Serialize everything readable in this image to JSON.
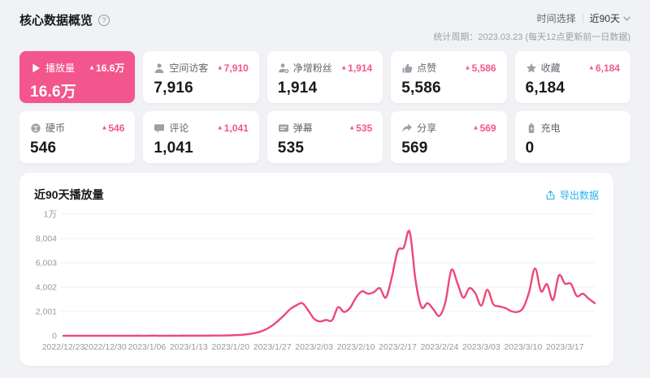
{
  "page": {
    "background": "#f1f2f5",
    "accent_pink": "#f2568c",
    "accent_blue": "#2ab1ec"
  },
  "header": {
    "title": "核心数据概览",
    "help_icon": "question-circle-icon",
    "time_label": "时间选择",
    "time_value": "近90天",
    "period": "统计周期：2023.03.23 (每天12点更新前一日数据)"
  },
  "stats": {
    "cards": [
      {
        "icon": "play-icon",
        "label": "播放量",
        "delta": "16.6万",
        "value": "16.6万",
        "active": true
      },
      {
        "icon": "visitor-icon",
        "label": "空间访客",
        "delta": "7,910",
        "value": "7,916",
        "active": false
      },
      {
        "icon": "new-follower-icon",
        "label": "净增粉丝",
        "delta": "1,914",
        "value": "1,914",
        "active": false
      },
      {
        "icon": "like-icon",
        "label": "点赞",
        "delta": "5,586",
        "value": "5,586",
        "active": false
      },
      {
        "icon": "favorite-icon",
        "label": "收藏",
        "delta": "6,184",
        "value": "6,184",
        "active": false
      },
      {
        "icon": "coin-icon",
        "label": "硬币",
        "delta": "546",
        "value": "546",
        "active": false
      },
      {
        "icon": "comment-icon",
        "label": "评论",
        "delta": "1,041",
        "value": "1,041",
        "active": false
      },
      {
        "icon": "danmaku-icon",
        "label": "弹幕",
        "delta": "535",
        "value": "535",
        "active": false
      },
      {
        "icon": "share-icon",
        "label": "分享",
        "delta": "569",
        "value": "569",
        "active": false
      },
      {
        "icon": "battery-icon",
        "label": "充电",
        "delta": "",
        "value": "0",
        "active": false
      }
    ]
  },
  "chart_panel": {
    "title": "近90天播放量",
    "export_label": "导出数据",
    "export_icon": "export-icon"
  },
  "chart_data": {
    "type": "line",
    "title": "近90天播放量",
    "ylabel": "",
    "xlabel": "",
    "grid": true,
    "legend_position": "none",
    "line_color": "#ec4878",
    "grid_color": "#eef0f3",
    "tick_color": "#9499a0",
    "ylim": [
      0,
      10005
    ],
    "y_tick_labels": [
      "0",
      "2,001",
      "4,002",
      "6,003",
      "8,004",
      "1万"
    ],
    "x_tick_labels": [
      "2022/12/23",
      "2022/12/30",
      "2023/1/06",
      "2023/1/13",
      "2023/1/20",
      "2023/1/27",
      "2023/2/03",
      "2023/2/10",
      "2023/2/17",
      "2023/2/24",
      "2023/3/03",
      "2023/3/10",
      "2023/3/17"
    ],
    "x_tick_every_n_points": 7,
    "series": [
      {
        "name": "播放量",
        "values": [
          8,
          6,
          7,
          5,
          9,
          6,
          8,
          7,
          6,
          9,
          8,
          7,
          10,
          9,
          8,
          11,
          9,
          10,
          12,
          10,
          11,
          13,
          12,
          14,
          15,
          18,
          22,
          28,
          40,
          60,
          90,
          140,
          220,
          350,
          550,
          850,
          1250,
          1700,
          2200,
          2500,
          2690,
          2100,
          1400,
          1180,
          1310,
          1280,
          2350,
          1960,
          2290,
          3140,
          3660,
          3460,
          3590,
          3920,
          3140,
          4800,
          7000,
          7250,
          8560,
          4500,
          2350,
          2690,
          2160,
          1640,
          2800,
          5420,
          4330,
          3140,
          3920,
          3500,
          2480,
          3790,
          2610,
          2420,
          2290,
          2030,
          1960,
          2290,
          3590,
          5550,
          3660,
          4250,
          2940,
          4970,
          4300,
          4280,
          3270,
          3460,
          3050,
          2680
        ]
      }
    ]
  }
}
